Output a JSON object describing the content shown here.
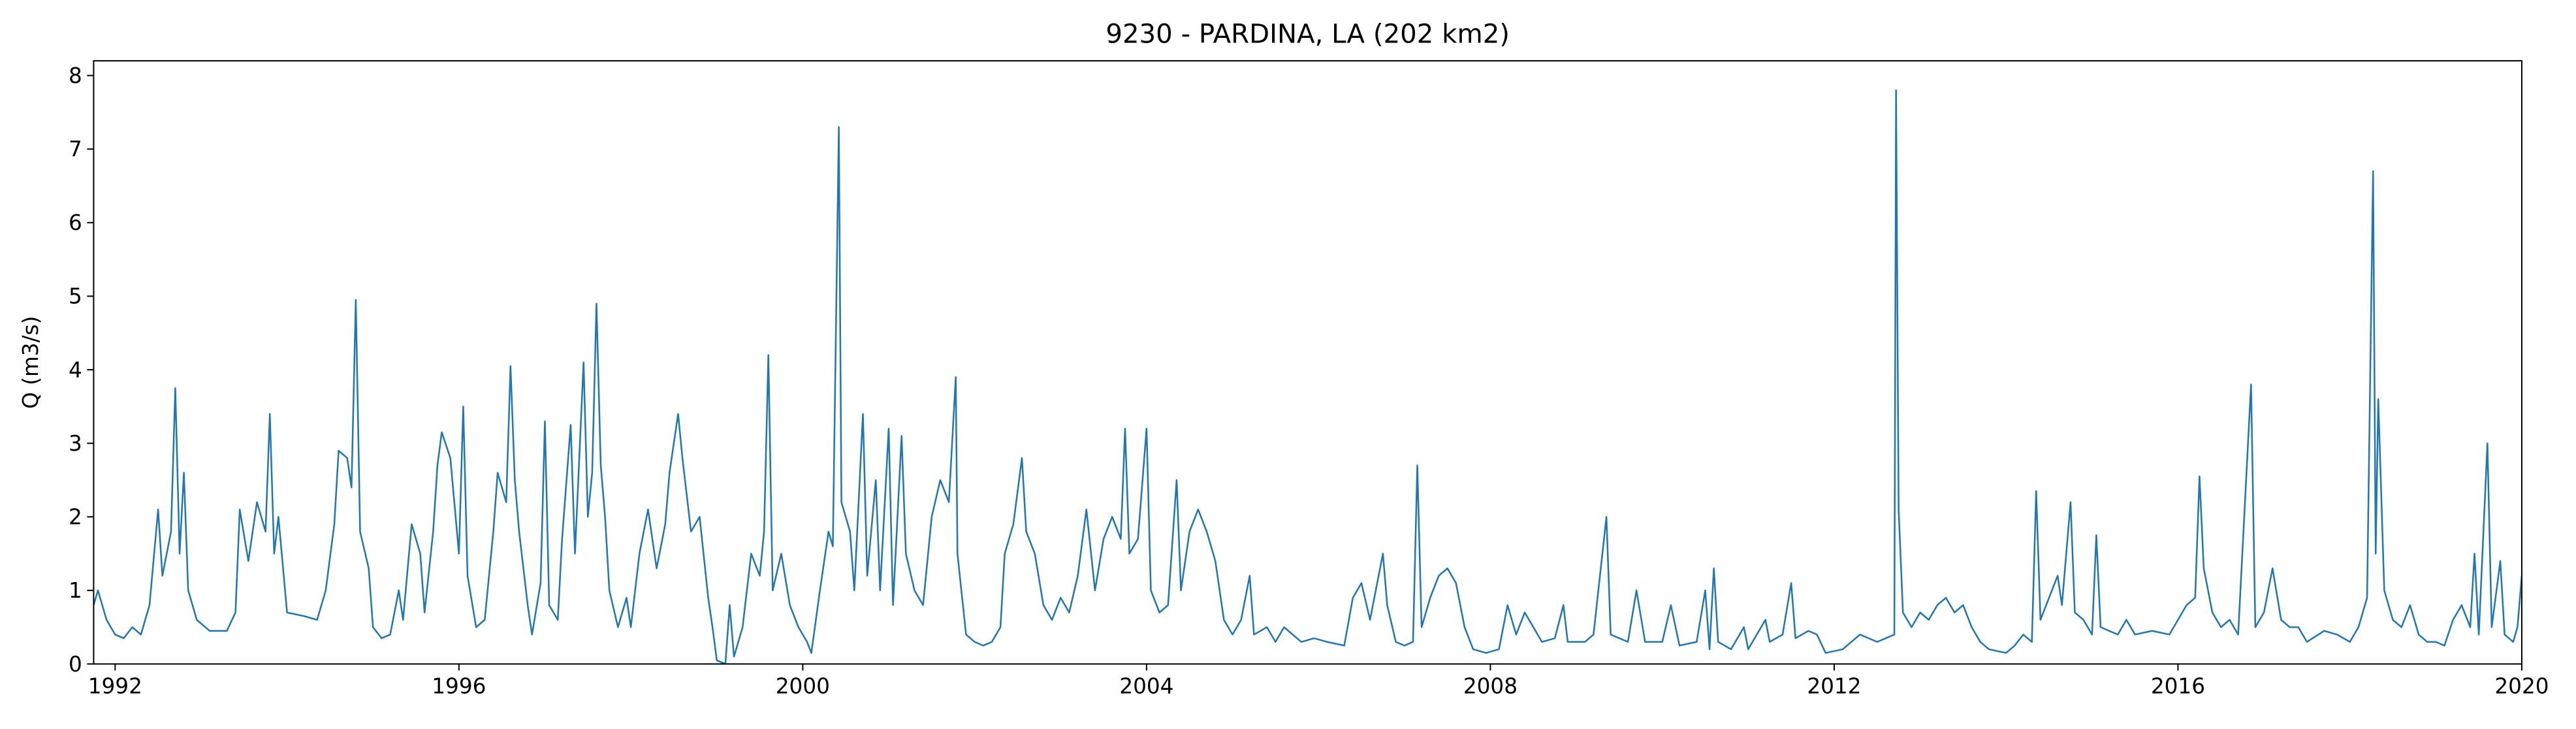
{
  "chart_data": {
    "type": "line",
    "title": "9230 - PARDINA, LA (202 km2)",
    "ylabel": "Q (m3/s)",
    "color": "#1f77b4",
    "xlim": [
      1991.75,
      2020.0
    ],
    "xticks": [
      1992,
      1996,
      2000,
      2004,
      2008,
      2012,
      2016,
      2020
    ],
    "ylim": [
      0,
      8.2
    ],
    "yticks": [
      0,
      1,
      2,
      3,
      4,
      5,
      6,
      7,
      8
    ],
    "grid": false,
    "x": [
      1991.75,
      1991.8,
      1991.9,
      1992.0,
      1992.1,
      1992.2,
      1992.3,
      1992.4,
      1992.5,
      1992.55,
      1992.65,
      1992.7,
      1992.75,
      1992.8,
      1992.85,
      1992.95,
      1993.1,
      1993.3,
      1993.4,
      1993.45,
      1993.55,
      1993.65,
      1993.75,
      1993.8,
      1993.85,
      1993.9,
      1994.0,
      1994.2,
      1994.35,
      1994.45,
      1994.55,
      1994.6,
      1994.7,
      1994.75,
      1994.8,
      1994.85,
      1994.95,
      1995.0,
      1995.1,
      1995.2,
      1995.3,
      1995.35,
      1995.45,
      1995.55,
      1995.6,
      1995.7,
      1995.75,
      1995.8,
      1995.9,
      1996.0,
      1996.05,
      1996.1,
      1996.2,
      1996.3,
      1996.4,
      1996.45,
      1996.55,
      1996.6,
      1996.65,
      1996.7,
      1996.8,
      1996.85,
      1996.95,
      1997.0,
      1997.05,
      1997.15,
      1997.2,
      1997.3,
      1997.35,
      1997.45,
      1997.5,
      1997.55,
      1997.6,
      1997.65,
      1997.7,
      1997.75,
      1997.85,
      1997.95,
      1998.0,
      1998.1,
      1998.2,
      1998.3,
      1998.4,
      1998.45,
      1998.55,
      1998.6,
      1998.7,
      1998.8,
      1998.9,
      1998.95,
      1999.0,
      1999.1,
      1999.15,
      1999.2,
      1999.3,
      1999.4,
      1999.5,
      1999.55,
      1999.6,
      1999.65,
      1999.75,
      1999.85,
      1999.95,
      2000.05,
      2000.1,
      2000.2,
      2000.3,
      2000.35,
      2000.42,
      2000.45,
      2000.55,
      2000.6,
      2000.7,
      2000.75,
      2000.85,
      2000.9,
      2001.0,
      2001.05,
      2001.15,
      2001.2,
      2001.3,
      2001.4,
      2001.5,
      2001.6,
      2001.7,
      2001.78,
      2001.8,
      2001.9,
      2002.0,
      2002.1,
      2002.2,
      2002.3,
      2002.35,
      2002.45,
      2002.55,
      2002.6,
      2002.7,
      2002.8,
      2002.9,
      2003.0,
      2003.1,
      2003.2,
      2003.3,
      2003.4,
      2003.5,
      2003.6,
      2003.7,
      2003.75,
      2003.8,
      2003.9,
      2004.0,
      2004.05,
      2004.15,
      2004.25,
      2004.35,
      2004.4,
      2004.5,
      2004.6,
      2004.7,
      2004.8,
      2004.9,
      2005.0,
      2005.1,
      2005.2,
      2005.25,
      2005.4,
      2005.5,
      2005.6,
      2005.8,
      2005.95,
      2006.1,
      2006.3,
      2006.4,
      2006.5,
      2006.6,
      2006.7,
      2006.75,
      2006.8,
      2006.9,
      2007.0,
      2007.1,
      2007.15,
      2007.2,
      2007.3,
      2007.4,
      2007.5,
      2007.6,
      2007.7,
      2007.8,
      2007.95,
      2008.1,
      2008.2,
      2008.3,
      2008.4,
      2008.5,
      2008.6,
      2008.75,
      2008.85,
      2008.9,
      2009.1,
      2009.2,
      2009.35,
      2009.4,
      2009.6,
      2009.7,
      2009.8,
      2010.0,
      2010.1,
      2010.2,
      2010.4,
      2010.5,
      2010.55,
      2010.6,
      2010.65,
      2010.8,
      2010.95,
      2011.0,
      2011.2,
      2011.25,
      2011.4,
      2011.5,
      2011.55,
      2011.7,
      2011.8,
      2011.9,
      2012.1,
      2012.3,
      2012.5,
      2012.6,
      2012.7,
      2012.72,
      2012.75,
      2012.8,
      2012.9,
      2013.0,
      2013.1,
      2013.2,
      2013.3,
      2013.4,
      2013.5,
      2013.6,
      2013.7,
      2013.8,
      2014.0,
      2014.1,
      2014.2,
      2014.3,
      2014.35,
      2014.4,
      2014.5,
      2014.6,
      2014.65,
      2014.75,
      2014.8,
      2014.9,
      2015.0,
      2015.05,
      2015.1,
      2015.3,
      2015.4,
      2015.5,
      2015.7,
      2015.9,
      2016.0,
      2016.1,
      2016.2,
      2016.25,
      2016.3,
      2016.4,
      2016.5,
      2016.6,
      2016.7,
      2016.85,
      2016.9,
      2017.0,
      2017.1,
      2017.2,
      2017.3,
      2017.4,
      2017.5,
      2017.7,
      2017.85,
      2018.0,
      2018.1,
      2018.2,
      2018.27,
      2018.3,
      2018.33,
      2018.4,
      2018.5,
      2018.6,
      2018.7,
      2018.8,
      2018.9,
      2019.0,
      2019.1,
      2019.2,
      2019.3,
      2019.4,
      2019.45,
      2019.5,
      2019.6,
      2019.65,
      2019.75,
      2019.8,
      2019.9,
      2019.95,
      2020.0
    ],
    "values": [
      0.8,
      1.0,
      0.6,
      0.4,
      0.35,
      0.5,
      0.4,
      0.8,
      2.1,
      1.2,
      1.8,
      3.75,
      1.5,
      2.6,
      1.0,
      0.6,
      0.45,
      0.45,
      0.7,
      2.1,
      1.4,
      2.2,
      1.8,
      3.4,
      1.5,
      2.0,
      0.7,
      0.65,
      0.6,
      1.0,
      1.9,
      2.9,
      2.8,
      2.4,
      4.95,
      1.8,
      1.3,
      0.5,
      0.35,
      0.4,
      1.0,
      0.6,
      1.9,
      1.5,
      0.7,
      1.8,
      2.7,
      3.15,
      2.8,
      1.5,
      3.5,
      1.2,
      0.5,
      0.6,
      1.8,
      2.6,
      2.2,
      4.05,
      2.5,
      1.8,
      0.8,
      0.4,
      1.1,
      3.3,
      0.8,
      0.6,
      1.7,
      3.25,
      1.5,
      4.1,
      2.0,
      2.6,
      4.9,
      2.7,
      2.0,
      1.0,
      0.5,
      0.9,
      0.5,
      1.5,
      2.1,
      1.3,
      1.9,
      2.6,
      3.4,
      2.8,
      1.8,
      2.0,
      0.9,
      0.5,
      0.05,
      0.0,
      0.8,
      0.1,
      0.5,
      1.5,
      1.2,
      1.8,
      4.2,
      1.0,
      1.5,
      0.8,
      0.5,
      0.3,
      0.15,
      1.0,
      1.8,
      1.6,
      7.3,
      2.2,
      1.8,
      1.0,
      3.4,
      1.2,
      2.5,
      1.0,
      3.2,
      0.8,
      3.1,
      1.5,
      1.0,
      0.8,
      2.0,
      2.5,
      2.2,
      3.9,
      1.5,
      0.4,
      0.3,
      0.25,
      0.3,
      0.5,
      1.5,
      1.9,
      2.8,
      1.8,
      1.5,
      0.8,
      0.6,
      0.9,
      0.7,
      1.2,
      2.1,
      1.0,
      1.7,
      2.0,
      1.7,
      3.2,
      1.5,
      1.7,
      3.2,
      1.0,
      0.7,
      0.8,
      2.5,
      1.0,
      1.8,
      2.1,
      1.8,
      1.4,
      0.6,
      0.4,
      0.6,
      1.2,
      0.4,
      0.5,
      0.3,
      0.5,
      0.3,
      0.35,
      0.3,
      0.25,
      0.9,
      1.1,
      0.6,
      1.2,
      1.5,
      0.8,
      0.3,
      0.25,
      0.3,
      2.7,
      0.5,
      0.9,
      1.2,
      1.3,
      1.1,
      0.5,
      0.2,
      0.15,
      0.2,
      0.8,
      0.4,
      0.7,
      0.5,
      0.3,
      0.35,
      0.8,
      0.3,
      0.3,
      0.4,
      2.0,
      0.4,
      0.3,
      1.0,
      0.3,
      0.3,
      0.8,
      0.25,
      0.3,
      1.0,
      0.2,
      1.3,
      0.3,
      0.2,
      0.5,
      0.2,
      0.6,
      0.3,
      0.4,
      1.1,
      0.35,
      0.45,
      0.4,
      0.15,
      0.2,
      0.4,
      0.3,
      0.35,
      0.4,
      7.8,
      2.1,
      0.7,
      0.5,
      0.7,
      0.6,
      0.8,
      0.9,
      0.7,
      0.8,
      0.5,
      0.3,
      0.2,
      0.15,
      0.25,
      0.4,
      0.3,
      2.35,
      0.6,
      0.9,
      1.2,
      0.8,
      2.2,
      0.7,
      0.6,
      0.4,
      1.75,
      0.5,
      0.4,
      0.6,
      0.4,
      0.45,
      0.4,
      0.6,
      0.8,
      0.9,
      2.55,
      1.3,
      0.7,
      0.5,
      0.6,
      0.4,
      3.8,
      0.5,
      0.7,
      1.3,
      0.6,
      0.5,
      0.5,
      0.3,
      0.45,
      0.4,
      0.3,
      0.5,
      0.9,
      6.7,
      1.5,
      3.6,
      1.0,
      0.6,
      0.5,
      0.8,
      0.4,
      0.3,
      0.3,
      0.25,
      0.6,
      0.8,
      0.5,
      1.5,
      0.4,
      3.0,
      0.5,
      1.4,
      0.4,
      0.3,
      0.5,
      1.2
    ]
  }
}
